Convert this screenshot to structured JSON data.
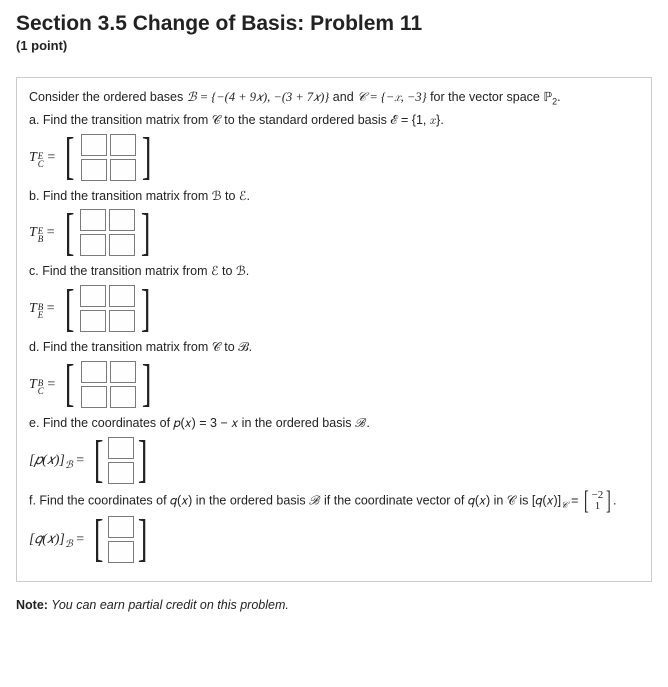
{
  "header": {
    "title": "Section 3.5 Change of Basis: Problem 11",
    "points": "(1 point)"
  },
  "intro": {
    "prefix": "Consider the ordered bases ",
    "B_label": "ℬ",
    "B_set": " = {−(4 + 9𝑥), −(3 + 7𝑥)}",
    "and": " and ",
    "C_label": "𝒞",
    "C_set": " = {−𝑥, −3}",
    "for": " for the vector space ",
    "P2": "ℙ",
    "P2_sub": "2",
    "period": "."
  },
  "part_a": {
    "text": "a. Find the transition matrix from 𝒞 to the standard ordered basis ℰ = {1, 𝑥}."
  },
  "part_b": {
    "text": "b. Find the transition matrix from ℬ to ℰ."
  },
  "part_c": {
    "text": "c. Find the transition matrix from ℰ to ℬ."
  },
  "part_d": {
    "text": "d. Find the transition matrix from 𝒞 to ℬ."
  },
  "part_e": {
    "text": "e. Find the coordinates of 𝑝(𝑥) = 3 − 𝑥 in the ordered basis ℬ."
  },
  "part_f": {
    "text": "f. Find the coordinates of 𝑞(𝑥) in the ordered basis ℬ if the coordinate vector of 𝑞(𝑥) in 𝒞 is [𝑞(𝑥)]",
    "sub": "𝒞",
    "eq": " = ",
    "vec_top": "−2",
    "vec_bot": "1",
    "period": "."
  },
  "labels": {
    "TCE_T": "T",
    "TCE_sup": "E",
    "TCE_sub": "C",
    "TBE_T": "T",
    "TBE_sup": "E",
    "TBE_sub": "B",
    "TEB_T": "T",
    "TEB_sup": "B",
    "TEB_sub": "E",
    "TCB_T": "T",
    "TCB_sup": "B",
    "TCB_sub": "C",
    "pxB": "[𝑝(𝑥)]",
    "pxB_sub": "ℬ",
    "qxB": "[𝑞(𝑥)]",
    "qxB_sub": "ℬ",
    "eq": " = "
  },
  "note": {
    "label": "Note:",
    "text": " You can earn partial credit on this problem."
  },
  "style": {
    "input_border": "#7a7a7a",
    "box_border": "#cccccc",
    "text_color": "#222222",
    "bg": "#ffffff"
  }
}
